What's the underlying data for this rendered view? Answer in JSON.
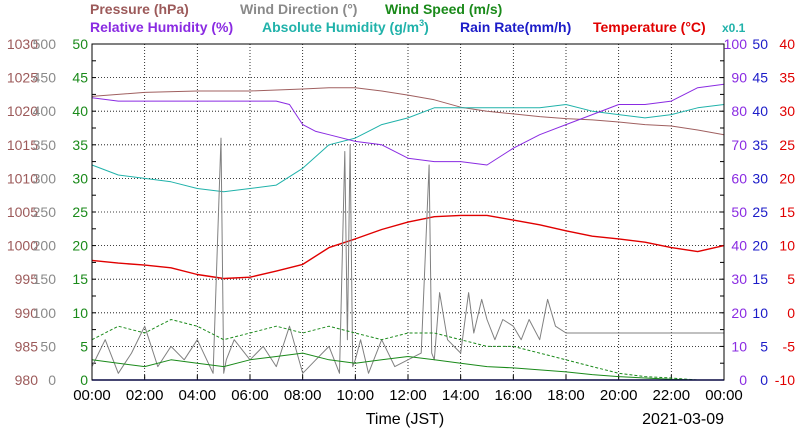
{
  "chart_data": {
    "type": "line",
    "title_parts": {
      "pressure": "Pressure (hPa)",
      "wind_dir": "Wind Direction (°)",
      "wind_speed": "Wind Speed (m/s)",
      "humidity_rel": "Relative Humidity (%)",
      "humidity_abs": "Absolute Humidity (g/m",
      "humidity_abs_sup": "3",
      "humidity_abs_close": ")",
      "rain": "Rain Rate(mm/h)",
      "temperature": "Temperature (°C)",
      "abs_scale": "x0.1"
    },
    "xlabel": "Time (JST)",
    "date": "2021-03-09",
    "x_ticks": [
      "00:00",
      "02:00",
      "04:00",
      "06:00",
      "08:00",
      "10:00",
      "12:00",
      "14:00",
      "16:00",
      "18:00",
      "20:00",
      "22:00",
      "00:00"
    ],
    "xlim": [
      0,
      24
    ],
    "axes": {
      "pressure": {
        "ticks": [
          "1030",
          "1025",
          "1020",
          "1015",
          "1010",
          "1005",
          "1000",
          "995",
          "990",
          "985",
          "980"
        ],
        "range": [
          980,
          1030
        ],
        "color": "#9c5a5a"
      },
      "wind_dir": {
        "ticks": [
          "500",
          "450",
          "400",
          "350",
          "300",
          "250",
          "200",
          "150",
          "100",
          "50",
          "0"
        ],
        "range": [
          0,
          500
        ],
        "color": "#8a8a8a"
      },
      "wind_speed": {
        "ticks": [
          "50",
          "45",
          "40",
          "35",
          "30",
          "25",
          "20",
          "15",
          "10",
          "5",
          "0"
        ],
        "range": [
          0,
          50
        ],
        "color": "#1a8a1a"
      },
      "humidity": {
        "ticks": [
          "100",
          "90",
          "80",
          "70",
          "60",
          "50",
          "40",
          "30",
          "20",
          "10",
          "0"
        ],
        "range": [
          0,
          100
        ],
        "color": "#8a2be2"
      },
      "rain": {
        "ticks": [
          "50",
          "45",
          "40",
          "35",
          "30",
          "25",
          "20",
          "15",
          "10",
          "5",
          "0"
        ],
        "range": [
          0,
          50
        ],
        "color": "#1c1cc8"
      },
      "temperature": {
        "ticks": [
          "40",
          "35",
          "30",
          "25",
          "20",
          "15",
          "10",
          "5",
          "0",
          "-5",
          "-10"
        ],
        "range": [
          -10,
          40
        ],
        "color": "#e00000"
      }
    },
    "grid": true,
    "series": [
      {
        "name": "Pressure (hPa)",
        "axis": "pressure",
        "color": "#a06060",
        "width": 1,
        "x": [
          0,
          2,
          4,
          6,
          8,
          9,
          10,
          11,
          12,
          13,
          14,
          15,
          16,
          17,
          18,
          19,
          20,
          21,
          22,
          23,
          24
        ],
        "y": [
          1022.2,
          1022.8,
          1023.0,
          1023.0,
          1023.3,
          1023.5,
          1023.5,
          1023.0,
          1022.4,
          1021.7,
          1020.6,
          1020.0,
          1019.6,
          1019.2,
          1018.9,
          1018.7,
          1018.4,
          1018.0,
          1017.8,
          1017.2,
          1016.5
        ]
      },
      {
        "name": "Absolute Humidity (g/m3)",
        "axis": "humidity",
        "color": "#20b2aa",
        "width": 1,
        "x": [
          0,
          1,
          2,
          3,
          4,
          5,
          6,
          7,
          8,
          9,
          10,
          11,
          12,
          13,
          14,
          15,
          16,
          17,
          18,
          19,
          20,
          21,
          22,
          23,
          24
        ],
        "y": [
          64,
          61,
          60,
          59,
          57,
          56,
          57,
          58,
          63,
          70,
          72,
          76,
          78,
          81,
          81,
          81,
          81,
          81,
          82,
          80,
          79,
          78,
          79,
          81,
          82
        ]
      },
      {
        "name": "Relative Humidity (%)",
        "axis": "humidity",
        "color": "#8a2be2",
        "width": 1,
        "x": [
          0,
          1,
          2,
          3,
          4,
          5,
          6,
          7,
          7.5,
          8,
          8.5,
          9,
          10,
          11,
          12,
          13,
          14,
          15,
          16,
          17,
          18,
          19,
          20,
          21,
          22,
          23,
          24
        ],
        "y": [
          84,
          83,
          83,
          83,
          83,
          83,
          83,
          83,
          82,
          76,
          74,
          73,
          71,
          70,
          66,
          65,
          65,
          64,
          69,
          73,
          76,
          79,
          82,
          82,
          83,
          87,
          88
        ]
      },
      {
        "name": "Temperature (°C)",
        "axis": "temperature",
        "color": "#e00000",
        "width": 1.4,
        "x": [
          0,
          1,
          2,
          3,
          4,
          5,
          6,
          7,
          8,
          9,
          10,
          11,
          12,
          13,
          14,
          15,
          16,
          17,
          18,
          19,
          20,
          21,
          22,
          23,
          24
        ],
        "y": [
          7.8,
          7.4,
          7.1,
          6.7,
          5.7,
          5.1,
          5.3,
          6.2,
          7.2,
          9.7,
          11.0,
          12.4,
          13.5,
          14.3,
          14.5,
          14.5,
          13.8,
          13.1,
          12.2,
          11.4,
          11.0,
          10.5,
          9.7,
          9.1,
          10.0
        ]
      },
      {
        "name": "Wind Direction (°)",
        "axis": "wind_dir",
        "color": "#808080",
        "width": 1,
        "x": [
          0,
          0.5,
          1,
          1.5,
          2,
          2.5,
          3,
          3.5,
          4,
          4.6,
          4.9,
          5.0,
          5.1,
          5.4,
          6,
          6.5,
          7,
          7.5,
          8,
          8.5,
          9,
          9.4,
          9.6,
          9.7,
          9.8,
          9.9,
          10.0,
          10.2,
          10.5,
          11,
          11.5,
          12,
          12.5,
          12.8,
          12.9,
          13.0,
          13.2,
          13.5,
          14,
          14.3,
          14.5,
          14.8,
          15,
          15.3,
          15.6,
          16,
          16.3,
          16.6,
          17,
          17.3,
          17.6,
          18,
          18.5,
          19,
          20,
          21,
          22,
          23,
          24
        ],
        "y": [
          20,
          60,
          10,
          40,
          80,
          20,
          50,
          30,
          60,
          10,
          360,
          10,
          30,
          60,
          30,
          50,
          20,
          80,
          10,
          30,
          50,
          10,
          340,
          60,
          350,
          20,
          30,
          60,
          10,
          60,
          20,
          30,
          40,
          320,
          40,
          30,
          130,
          60,
          40,
          130,
          70,
          120,
          90,
          60,
          90,
          80,
          60,
          90,
          60,
          120,
          80,
          70,
          70,
          70,
          70,
          70,
          70,
          70,
          70
        ]
      },
      {
        "name": "Wind Speed (m/s) avg",
        "axis": "wind_speed",
        "color": "#1a8a1a",
        "width": 1,
        "x": [
          0,
          1,
          2,
          3,
          4,
          5,
          6,
          7,
          8,
          9,
          10,
          11,
          12,
          13,
          14,
          15,
          16,
          17,
          18,
          19,
          20,
          21,
          22,
          23,
          24
        ],
        "y": [
          3,
          2.5,
          2,
          3,
          2.5,
          2,
          3,
          3.5,
          4,
          3,
          2.5,
          3,
          3.5,
          3,
          2.5,
          2,
          1.8,
          1.5,
          1.2,
          0.8,
          0.5,
          0.3,
          0.1,
          0,
          0
        ]
      },
      {
        "name": "Wind Speed (m/s) max",
        "axis": "wind_speed",
        "color": "#1a8a1a",
        "width": 1,
        "dash": "3,2",
        "x": [
          0,
          1,
          2,
          3,
          4,
          5,
          6,
          7,
          8,
          9,
          10,
          11,
          12,
          13,
          14,
          15,
          16,
          17,
          18,
          19,
          20,
          21,
          22,
          23,
          24
        ],
        "y": [
          6,
          8,
          7,
          9,
          8,
          6,
          7,
          8,
          7,
          8,
          7,
          6,
          7,
          7,
          6,
          5,
          5,
          4,
          3,
          2,
          1,
          0.5,
          0.3,
          0,
          0
        ]
      },
      {
        "name": "Rain Rate(mm/h)",
        "axis": "rain",
        "color": "#1c1cc8",
        "width": 1.5,
        "x": [
          0,
          24
        ],
        "y": [
          0,
          0
        ]
      }
    ]
  }
}
